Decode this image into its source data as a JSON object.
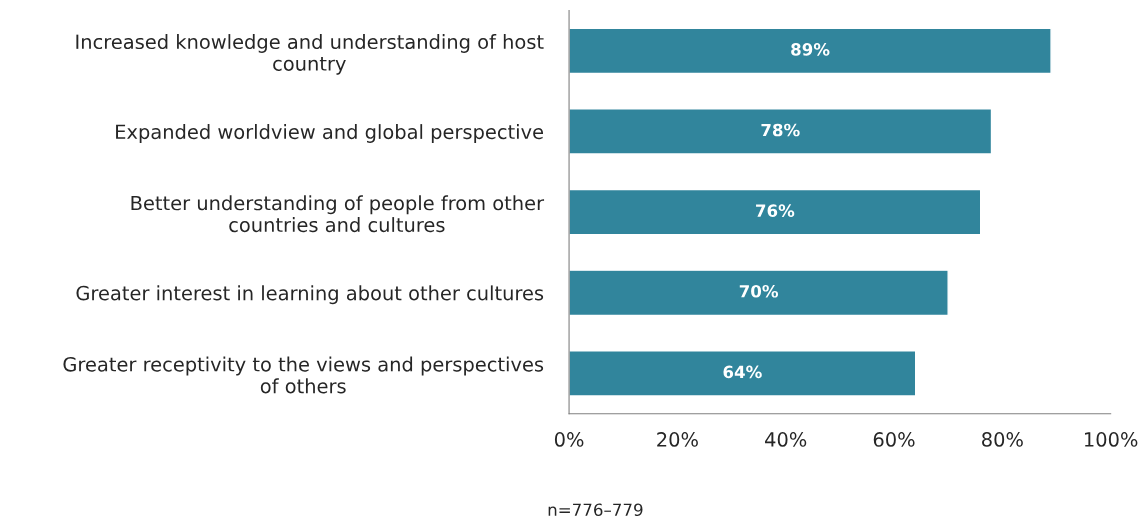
{
  "chart_data": {
    "type": "bar",
    "orientation": "horizontal",
    "categories": [
      "Increased knowledge and understanding of host\ncountry",
      "Expanded worldview and global perspective",
      "Better understanding of people from other\ncountries and cultures",
      "Greater interest in learning about other cultures",
      "Greater receptivity to the views and perspectives\nof others"
    ],
    "values": [
      89,
      78,
      76,
      70,
      64
    ],
    "value_labels": [
      "89%",
      "78%",
      "76%",
      "70%",
      "64%"
    ],
    "color": "#31859c",
    "xlim": [
      0,
      100
    ],
    "xticks": [
      {
        "value": 0,
        "label": "0%"
      },
      {
        "value": 20,
        "label": "20%"
      },
      {
        "value": 40,
        "label": "40%"
      },
      {
        "value": 60,
        "label": "60%"
      },
      {
        "value": 80,
        "label": "80%"
      },
      {
        "value": 100,
        "label": "100%"
      }
    ],
    "grid": false,
    "annotations": [
      "n=776–779"
    ]
  }
}
